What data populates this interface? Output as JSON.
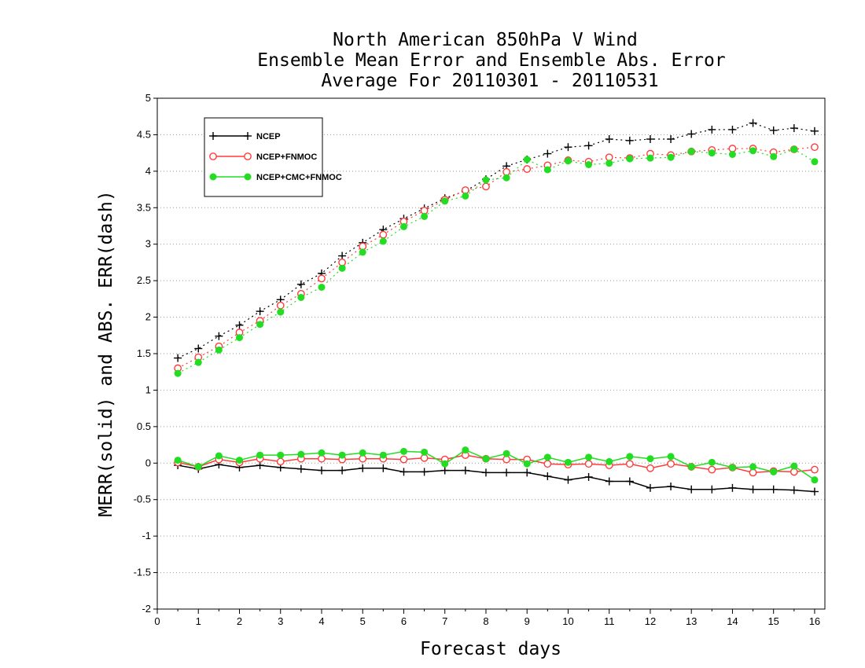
{
  "chart_data": {
    "type": "line",
    "title": [
      "North American 850hPa V Wind",
      "Ensemble Mean Error and Ensemble Abs. Error",
      "Average For 20110301 - 20110531"
    ],
    "xlabel": "Forecast days",
    "ylabel": "MERR(solid) and ABS. ERR(dash)",
    "xlim": [
      0,
      16.25
    ],
    "ylim": [
      -2,
      5
    ],
    "xticks": [
      0,
      1,
      2,
      3,
      4,
      5,
      6,
      7,
      8,
      9,
      10,
      11,
      12,
      13,
      14,
      15,
      16
    ],
    "xtick_labels": [
      "0",
      "1",
      "2",
      "3",
      "4",
      "5",
      "6",
      "7",
      "8",
      "9",
      "10",
      "11",
      "12",
      "13",
      "14",
      "15",
      "16"
    ],
    "yticks": [
      -2,
      -1.5,
      -1,
      -0.5,
      0,
      0.5,
      1,
      1.5,
      2,
      2.5,
      3,
      3.5,
      4,
      4.5,
      5
    ],
    "ytick_labels": [
      "-2",
      "-1.5",
      "-1",
      "-0.5",
      "0",
      "0.5",
      "1",
      "1.5",
      "2",
      "2.5",
      "3",
      "3.5",
      "4",
      "4.5",
      "5"
    ],
    "grid": "horizontal dotted",
    "legend_position": "top-left",
    "x": [
      0.5,
      1,
      1.5,
      2,
      2.5,
      3,
      3.5,
      4,
      4.5,
      5,
      5.5,
      6,
      6.5,
      7,
      7.5,
      8,
      8.5,
      9,
      9.5,
      10,
      10.5,
      11,
      11.5,
      12,
      12.5,
      13,
      13.5,
      14,
      14.5,
      15,
      15.5,
      16
    ],
    "series": [
      {
        "name": "NCEP",
        "color": "#000000",
        "marker": "plus",
        "abs_err": [
          1.44,
          1.57,
          1.74,
          1.89,
          2.08,
          2.24,
          2.45,
          2.6,
          2.84,
          3.02,
          3.2,
          3.35,
          3.49,
          3.63,
          3.73,
          3.89,
          4.07,
          4.16,
          4.24,
          4.33,
          4.35,
          4.44,
          4.42,
          4.44,
          4.44,
          4.51,
          4.57,
          4.57,
          4.66,
          4.56,
          4.59,
          4.55
        ],
        "mean_err": [
          -0.03,
          -0.08,
          -0.02,
          -0.06,
          -0.03,
          -0.06,
          -0.08,
          -0.1,
          -0.1,
          -0.07,
          -0.07,
          -0.12,
          -0.12,
          -0.1,
          -0.1,
          -0.13,
          -0.13,
          -0.13,
          -0.18,
          -0.23,
          -0.19,
          -0.25,
          -0.25,
          -0.34,
          -0.32,
          -0.36,
          -0.36,
          -0.34,
          -0.36,
          -0.36,
          -0.37,
          -0.39
        ]
      },
      {
        "name": "NCEP+FNMOC",
        "color": "#ff3b3b",
        "marker": "open-circle",
        "abs_err": [
          1.3,
          1.45,
          1.6,
          1.79,
          1.95,
          2.16,
          2.32,
          2.53,
          2.75,
          2.97,
          3.13,
          3.31,
          3.46,
          3.61,
          3.74,
          3.79,
          3.99,
          4.03,
          4.08,
          4.15,
          4.13,
          4.19,
          4.18,
          4.24,
          4.22,
          4.27,
          4.29,
          4.31,
          4.31,
          4.26,
          4.3,
          4.33
        ],
        "mean_err": [
          0.01,
          -0.05,
          0.05,
          0.01,
          0.06,
          0.02,
          0.06,
          0.06,
          0.05,
          0.06,
          0.06,
          0.05,
          0.07,
          0.05,
          0.11,
          0.06,
          0.05,
          0.05,
          -0.01,
          -0.02,
          -0.01,
          -0.03,
          -0.01,
          -0.07,
          -0.01,
          -0.05,
          -0.09,
          -0.06,
          -0.13,
          -0.11,
          -0.12,
          -0.09
        ]
      },
      {
        "name": "NCEP+CMC+FNMOC",
        "color": "#22dd22",
        "marker": "filled-circle",
        "abs_err": [
          1.23,
          1.38,
          1.55,
          1.72,
          1.9,
          2.07,
          2.27,
          2.41,
          2.67,
          2.89,
          3.04,
          3.24,
          3.38,
          3.59,
          3.66,
          3.88,
          3.91,
          4.16,
          4.02,
          4.14,
          4.09,
          4.11,
          4.17,
          4.18,
          4.19,
          4.27,
          4.25,
          4.23,
          4.28,
          4.2,
          4.3,
          4.13
        ],
        "mean_err": [
          0.04,
          -0.05,
          0.1,
          0.04,
          0.11,
          0.11,
          0.12,
          0.14,
          0.11,
          0.14,
          0.11,
          0.16,
          0.15,
          -0.01,
          0.18,
          0.06,
          0.13,
          -0.01,
          0.08,
          0.01,
          0.08,
          0.02,
          0.09,
          0.06,
          0.09,
          -0.05,
          0.01,
          -0.06,
          -0.05,
          -0.12,
          -0.04,
          -0.23
        ]
      }
    ]
  }
}
